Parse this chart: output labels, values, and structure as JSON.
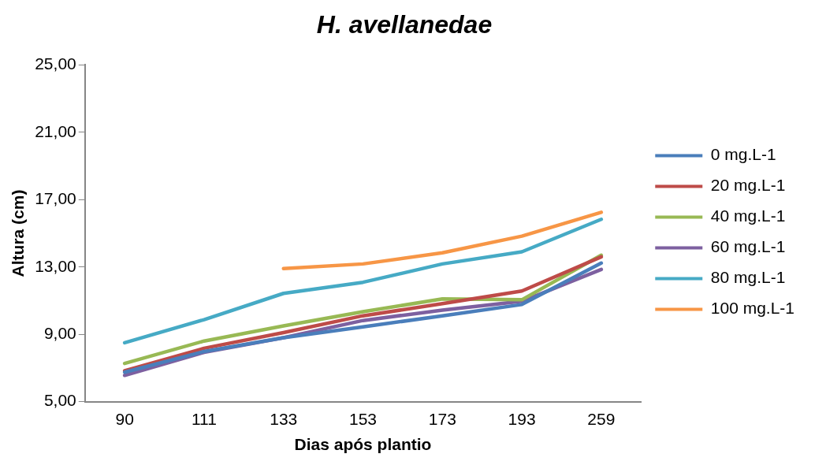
{
  "chart_data": {
    "type": "line",
    "title": "H. avellanedae",
    "xlabel": "Dias após plantio",
    "ylabel": "Altura (cm)",
    "categories": [
      "90",
      "111",
      "133",
      "153",
      "173",
      "193",
      "259"
    ],
    "ylim": [
      5,
      25
    ],
    "yticks": [
      {
        "value": 5,
        "label": "5,00"
      },
      {
        "value": 9,
        "label": "9,00"
      },
      {
        "value": 13,
        "label": "13,00"
      },
      {
        "value": 17,
        "label": "17,00"
      },
      {
        "value": 21,
        "label": "21,00"
      },
      {
        "value": 25,
        "label": "25,00"
      }
    ],
    "grid": false,
    "legend": "right",
    "marker": "none",
    "series": [
      {
        "name": "0 mg.L-1",
        "color": "#4a7ebb",
        "values": [
          6.75,
          7.98,
          8.8,
          9.44,
          10.1,
          10.77,
          13.23
        ]
      },
      {
        "name": "20 mg.L-1",
        "color": "#be4b48",
        "values": [
          6.84,
          8.17,
          9.1,
          10.1,
          10.82,
          11.57,
          13.6
        ]
      },
      {
        "name": "40 mg.L-1",
        "color": "#98b954",
        "values": [
          7.27,
          8.6,
          9.5,
          10.34,
          11.1,
          11.05,
          13.7
        ]
      },
      {
        "name": "60 mg.L-1",
        "color": "#7d60a0",
        "values": [
          6.56,
          7.93,
          8.8,
          9.82,
          10.44,
          10.96,
          12.85
        ]
      },
      {
        "name": "80 mg.L-1",
        "color": "#46aac5",
        "values": [
          8.5,
          9.87,
          11.43,
          12.09,
          13.18,
          13.9,
          15.83
        ]
      },
      {
        "name": "100 mg.L-1",
        "color": "#f79646",
        "values": [
          null,
          null,
          12.9,
          13.18,
          13.84,
          14.83,
          16.25
        ]
      }
    ]
  }
}
